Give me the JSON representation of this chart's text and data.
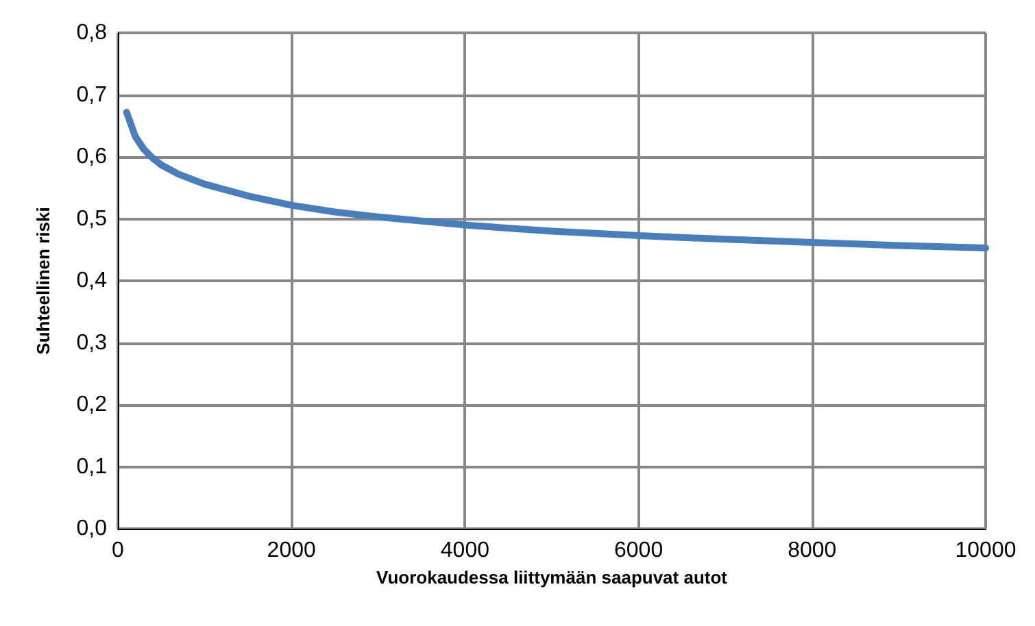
{
  "chart_data": {
    "type": "line",
    "xlabel": "Vuorokaudessa liittymään saapuvat autot",
    "ylabel": "Suhteellinen riski",
    "x": [
      100,
      200,
      300,
      400,
      500,
      700,
      1000,
      1500,
      2000,
      2500,
      3000,
      4000,
      5000,
      6000,
      7000,
      8000,
      9000,
      10000
    ],
    "series": [
      {
        "color": "#4a7ebb",
        "values": [
          0.672,
          0.633,
          0.612,
          0.598,
          0.587,
          0.572,
          0.556,
          0.537,
          0.522,
          0.511,
          0.503,
          0.49,
          0.48,
          0.473,
          0.467,
          0.462,
          0.457,
          0.453
        ]
      }
    ],
    "xlim": [
      0,
      10000
    ],
    "xticks": [
      0,
      2000,
      4000,
      6000,
      8000,
      10000
    ],
    "ylim": [
      0,
      0.8
    ],
    "yticks": [
      {
        "value": 0,
        "label": "0,0"
      },
      {
        "value": 0.1,
        "label": "0,1"
      },
      {
        "value": 0.2,
        "label": "0,2"
      },
      {
        "value": 0.3,
        "label": "0,3"
      },
      {
        "value": 0.4,
        "label": "0,4"
      },
      {
        "value": 0.5,
        "label": "0,5"
      },
      {
        "value": 0.6,
        "label": "0,6"
      },
      {
        "value": 0.7,
        "label": "0,7"
      },
      {
        "value": 0.8,
        "label": "0,8"
      }
    ],
    "grid": true,
    "marker": "none",
    "line_style": "solid"
  }
}
